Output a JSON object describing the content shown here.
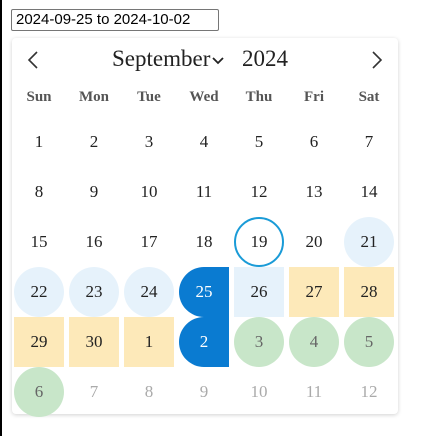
{
  "input": {
    "value": "2024-09-25 to 2024-10-02"
  },
  "header": {
    "month": "September",
    "year": "2024",
    "prev_icon": "‹",
    "next_icon": "›"
  },
  "weekdays": [
    "Sun",
    "Mon",
    "Tue",
    "Wed",
    "Thu",
    "Fri",
    "Sat"
  ],
  "weeks": [
    [
      "1",
      "2",
      "3",
      "4",
      "5",
      "6",
      "7"
    ],
    [
      "8",
      "9",
      "10",
      "11",
      "12",
      "13",
      "14"
    ],
    [
      "15",
      "16",
      "17",
      "18",
      "19",
      "20",
      "21"
    ],
    [
      "22",
      "23",
      "24",
      "25",
      "26",
      "27",
      "28"
    ],
    [
      "29",
      "30",
      "1",
      "2",
      "3",
      "4",
      "5"
    ],
    [
      "6",
      "7",
      "8",
      "9",
      "10",
      "11",
      "12"
    ]
  ],
  "colors": {
    "accent": "#0a7bd1",
    "today_ring": "#1a9bd7",
    "range": "#fde9b9",
    "hover": "#e6f2fb",
    "available": "#c8e6c9"
  }
}
